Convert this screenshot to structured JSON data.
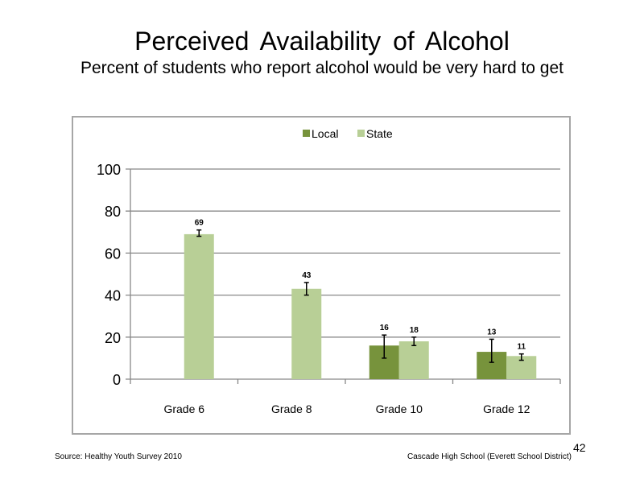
{
  "slide": {
    "title": "Perceived Availability of Alcohol",
    "subtitle": "Percent of students who report alcohol would be very hard to get",
    "source": "Source: Healthy Youth Survey 2010",
    "school": "Cascade High School (Everett School District)",
    "page_number": "42"
  },
  "chart_data": {
    "type": "bar",
    "categories": [
      "Grade 6",
      "Grade 8",
      "Grade 10",
      "Grade 12"
    ],
    "series": [
      {
        "name": "Local",
        "color": "#77933c",
        "values": [
          null,
          null,
          16,
          13
        ],
        "labels": [
          "",
          "",
          "16",
          "13"
        ],
        "error": [
          null,
          null,
          [
            10,
            21
          ],
          [
            8,
            19
          ]
        ]
      },
      {
        "name": "State",
        "color": "#b8cf96",
        "values": [
          69,
          43,
          18,
          11
        ],
        "labels": [
          "69",
          "43",
          "18",
          "11"
        ],
        "error": [
          [
            68,
            71
          ],
          [
            40,
            46
          ],
          [
            16,
            20
          ],
          [
            9,
            12
          ]
        ]
      }
    ],
    "ylim": [
      0,
      100
    ],
    "yticks": [
      0,
      20,
      40,
      60,
      80,
      100
    ],
    "grid": true,
    "legend_position": "top-center"
  }
}
